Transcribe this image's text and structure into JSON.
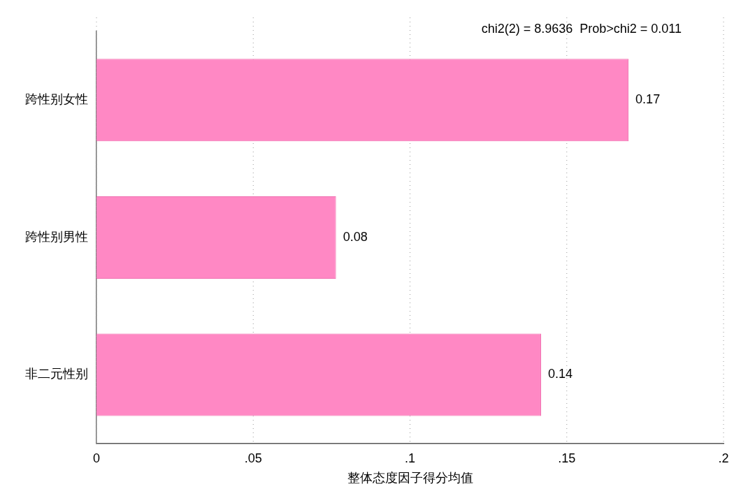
{
  "chart_data": {
    "type": "bar",
    "orientation": "horizontal",
    "categories": [
      "跨性别女性",
      "跨性别男性",
      "非二元性别"
    ],
    "values": [
      0.1697,
      0.0764,
      0.1418
    ],
    "value_labels": [
      "0.17",
      "0.08",
      "0.14"
    ],
    "color": "#ff88c4",
    "xlim": [
      0,
      0.2
    ],
    "xticks": [
      0,
      {
        "value": 0.05,
        "label": ".05"
      },
      {
        "value": 0.1,
        "label": ".1"
      },
      {
        "value": 0.15,
        "label": ".15"
      },
      {
        "value": 0.2,
        "label": ".2"
      }
    ],
    "xlabel": "整体态度因子得分均值",
    "grid": "x",
    "legend": false,
    "annotations": [
      "chi2(2) = 8.9636  Prob>chi2 = 0.011"
    ]
  }
}
